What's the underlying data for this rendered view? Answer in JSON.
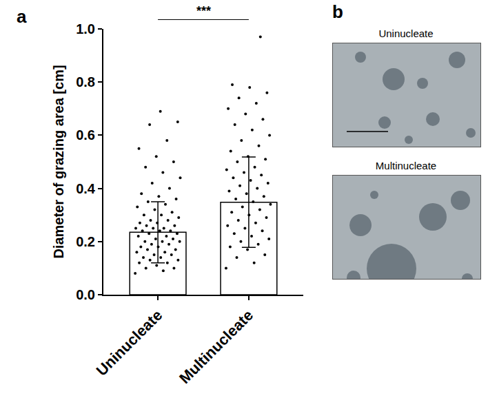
{
  "chart_data": {
    "type": "bar",
    "panel_labels": [
      "a",
      "b"
    ],
    "categories": [
      "Uninucleate",
      "Multinucleate"
    ],
    "values": [
      0.235,
      0.348
    ],
    "error": [
      0.115,
      0.17
    ],
    "color": "#ffffff",
    "points": [
      [
        0.08,
        0.09,
        0.1,
        0.1,
        0.11,
        0.12,
        0.12,
        0.13,
        0.13,
        0.14,
        0.14,
        0.15,
        0.15,
        0.16,
        0.16,
        0.17,
        0.17,
        0.18,
        0.18,
        0.19,
        0.19,
        0.2,
        0.2,
        0.2,
        0.21,
        0.21,
        0.22,
        0.22,
        0.23,
        0.23,
        0.24,
        0.24,
        0.24,
        0.25,
        0.25,
        0.25,
        0.26,
        0.26,
        0.27,
        0.27,
        0.28,
        0.28,
        0.29,
        0.3,
        0.3,
        0.31,
        0.32,
        0.33,
        0.34,
        0.35,
        0.36,
        0.37,
        0.38,
        0.4,
        0.42,
        0.44,
        0.46,
        0.48,
        0.5,
        0.52,
        0.55,
        0.58,
        0.64,
        0.65,
        0.69
      ],
      [
        0.1,
        0.12,
        0.14,
        0.15,
        0.17,
        0.18,
        0.19,
        0.2,
        0.21,
        0.22,
        0.23,
        0.24,
        0.25,
        0.26,
        0.27,
        0.28,
        0.29,
        0.3,
        0.31,
        0.32,
        0.33,
        0.34,
        0.35,
        0.36,
        0.37,
        0.38,
        0.39,
        0.4,
        0.41,
        0.42,
        0.43,
        0.44,
        0.45,
        0.46,
        0.47,
        0.48,
        0.5,
        0.51,
        0.52,
        0.54,
        0.56,
        0.58,
        0.6,
        0.62,
        0.64,
        0.66,
        0.68,
        0.7,
        0.72,
        0.74,
        0.76,
        0.78,
        0.79,
        0.97
      ]
    ],
    "y_label": "Diameter of grazing area [cm]",
    "ylim": [
      0,
      1.0
    ],
    "yticks": [
      {
        "value": 0,
        "label": "0.0"
      },
      {
        "value": 0.2,
        "label": "0.2"
      },
      {
        "value": 0.4,
        "label": "0.4"
      },
      {
        "value": 0.6,
        "label": "0.6"
      },
      {
        "value": 0.8,
        "label": "0.8"
      },
      {
        "value": 1.0,
        "label": "1.0"
      }
    ],
    "significance": "***",
    "grid": false,
    "images": [
      {
        "title": "Uninucleate"
      },
      {
        "title": "Multinucleate"
      }
    ]
  }
}
